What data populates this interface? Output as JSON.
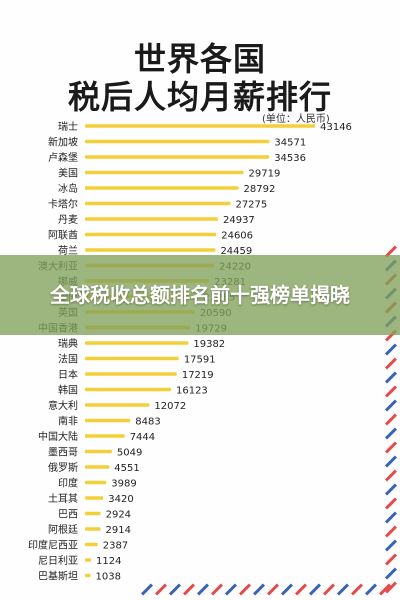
{
  "page": {
    "title_line1": "世界各国",
    "title_line2": "税后人均月薪排行",
    "unit": "(单位：人民币)",
    "banner": "全球税收总额排名前十强榜单揭晓"
  },
  "colors": {
    "bar": "#f3cf3a",
    "stripe_red": "#e64a4a",
    "stripe_blue": "#3a62b6",
    "banner": "#82a05a"
  },
  "chart_data": {
    "type": "bar",
    "orientation": "horizontal",
    "title": "世界各国 税后人均月薪排行",
    "unit": "(单位：人民币)",
    "grid": false,
    "legend": "none",
    "xlim": [
      0,
      45000
    ],
    "categories": [
      "瑞士",
      "新加坡",
      "卢森堡",
      "美国",
      "冰岛",
      "卡塔尔",
      "丹麦",
      "阿联酋",
      "荷兰",
      "澳大利亚",
      "挪威",
      "德国",
      "英国",
      "中国香港",
      "瑞典",
      "法国",
      "日本",
      "韩国",
      "意大利",
      "南非",
      "中国大陆",
      "墨西哥",
      "俄罗斯",
      "印度",
      "土耳其",
      "巴西",
      "阿根廷",
      "印度尼西亚",
      "尼日利亚",
      "巴基斯坦"
    ],
    "values": [
      43146,
      34571,
      34536,
      29719,
      28792,
      27275,
      24937,
      24606,
      24459,
      24220,
      23281,
      21285,
      20590,
      19729,
      19382,
      17591,
      17219,
      16123,
      12072,
      8483,
      7444,
      5049,
      4551,
      3989,
      3420,
      2924,
      2914,
      2387,
      1124,
      1038
    ],
    "value_labels": [
      "43146",
      "34571",
      "34536",
      "29719",
      "28792",
      "27275",
      "24937",
      "24606",
      "24459",
      "24220",
      "23281",
      "21285",
      "20590",
      "19729",
      "19382",
      "17591",
      "17219",
      "16123",
      "12072",
      "8483",
      "7444",
      "5049",
      "4551",
      "3989",
      "3420",
      "2924",
      "2914",
      "2387",
      "1124",
      "1038"
    ]
  }
}
